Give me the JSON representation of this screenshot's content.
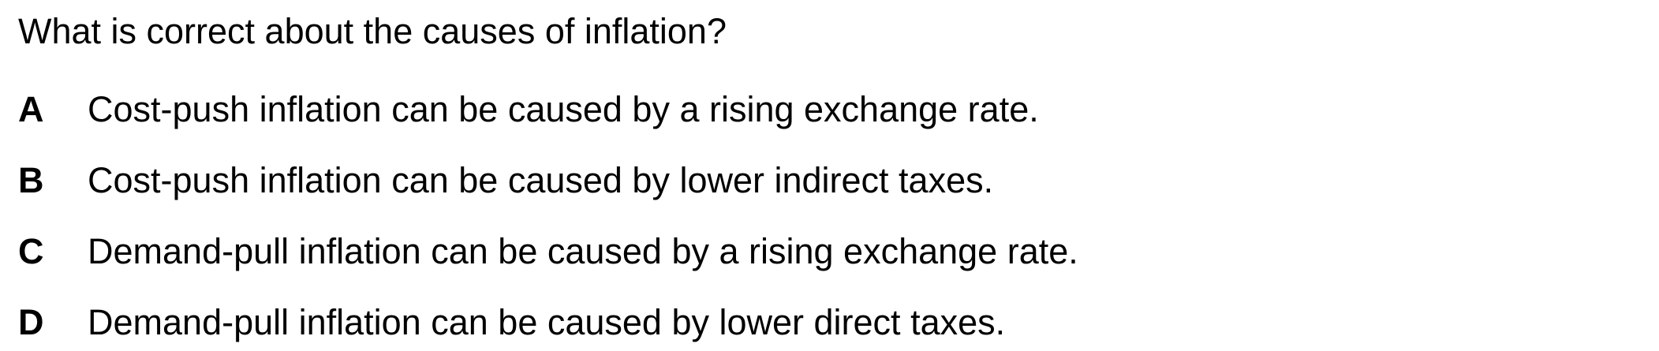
{
  "question": {
    "text": "What is correct about the causes of inflation?"
  },
  "options": [
    {
      "letter": "A",
      "text": "Cost-push inflation can be caused by a rising exchange rate."
    },
    {
      "letter": "B",
      "text": "Cost-push inflation can be caused by lower indirect taxes."
    },
    {
      "letter": "C",
      "text": "Demand-pull inflation can be caused by a rising exchange rate."
    },
    {
      "letter": "D",
      "text": "Demand-pull inflation can be caused by lower direct taxes."
    }
  ]
}
